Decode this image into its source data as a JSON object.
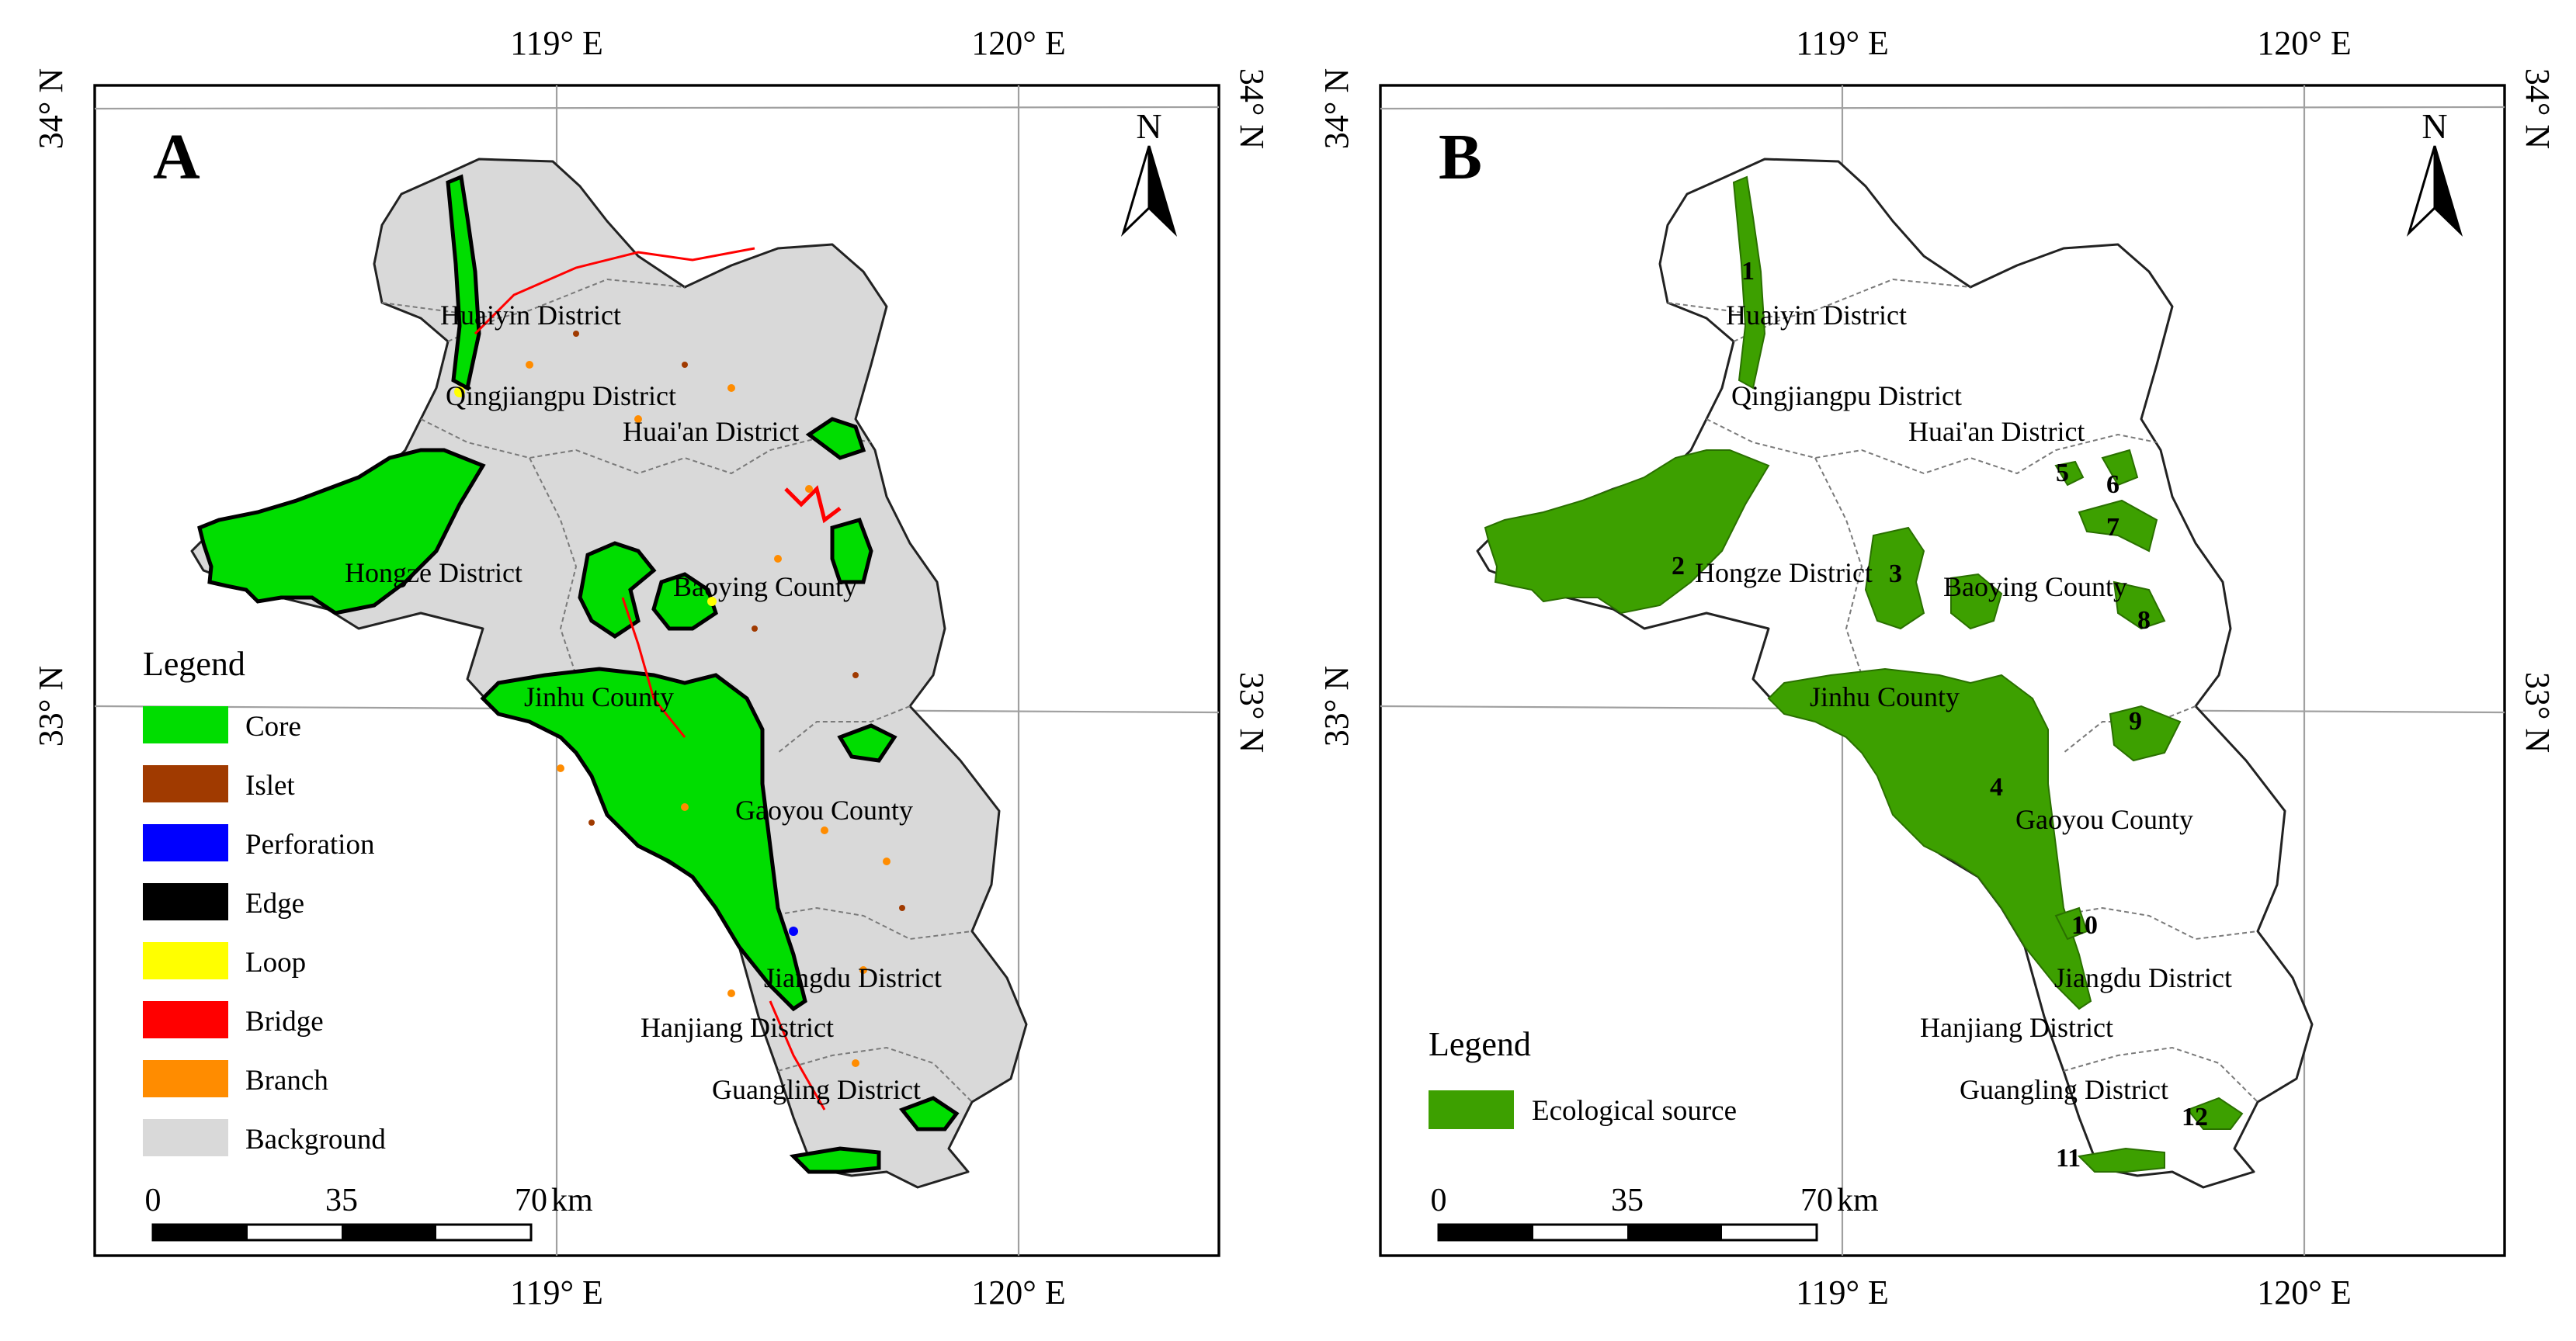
{
  "coordinates": {
    "top_labels": [
      "119° E",
      "120° E"
    ],
    "bottom_labels": [
      "119° E",
      "120° E"
    ],
    "left_labels": [
      "34° N",
      "33° N"
    ],
    "right_labels": [
      "34° N",
      "33° N"
    ]
  },
  "north_arrow": {
    "label": "N"
  },
  "panel_a": {
    "letter": "A",
    "districts": [
      "Huaiyin District",
      "Qingjiangpu District",
      "Huai'an District",
      "Hongze District",
      "Baoying County",
      "Jinhu County",
      "Gaoyou County",
      "Jiangdu District",
      "Hanjiang District",
      "Guangling District"
    ],
    "legend": {
      "title": "Legend",
      "items": [
        {
          "label": "Core",
          "color": "#00dd00"
        },
        {
          "label": "Islet",
          "color": "#a03a00"
        },
        {
          "label": "Perforation",
          "color": "#0000ff"
        },
        {
          "label": "Edge",
          "color": "#000000"
        },
        {
          "label": "Loop",
          "color": "#ffff00"
        },
        {
          "label": "Bridge",
          "color": "#ff0000"
        },
        {
          "label": "Branch",
          "color": "#ff8c00"
        },
        {
          "label": "Background",
          "color": "#d9d9d9"
        }
      ]
    },
    "scale": {
      "ticks": [
        "0",
        "35",
        "70"
      ],
      "unit": "km"
    }
  },
  "panel_b": {
    "letter": "B",
    "districts": [
      "Huaiyin District",
      "Qingjiangpu District",
      "Huai'an District",
      "Hongze District",
      "Baoying County",
      "Jinhu County",
      "Gaoyou County",
      "Jiangdu District",
      "Hanjiang District",
      "Guangling District"
    ],
    "source_ids": [
      "1",
      "2",
      "3",
      "4",
      "5",
      "6",
      "7",
      "8",
      "9",
      "10",
      "11",
      "12"
    ],
    "legend": {
      "title": "Legend",
      "items": [
        {
          "label": "Ecological source",
          "color": "#3da000"
        }
      ]
    },
    "scale": {
      "ticks": [
        "0",
        "35",
        "70"
      ],
      "unit": "km"
    }
  }
}
